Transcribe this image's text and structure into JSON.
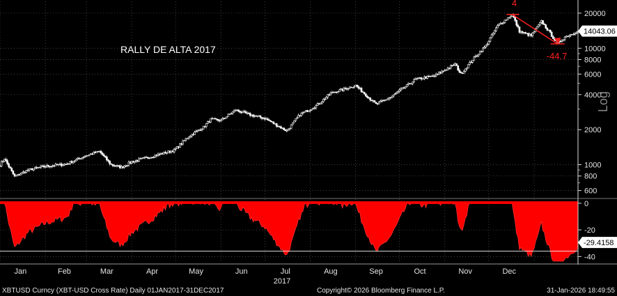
{
  "chart_data": [
    {
      "type": "candlestick",
      "title": "RALLY DE ALTA 2017",
      "scale": "log",
      "y_axis_label": "Log",
      "y_ticks": [
        600,
        800,
        1000,
        2000,
        4000,
        6000,
        8000,
        10000,
        20000
      ],
      "y_tick_labels": [
        "600",
        "800",
        "1000",
        "2000",
        "4000",
        "6000",
        "8000",
        "10000",
        "20000"
      ],
      "ylim": [
        520,
        22000
      ],
      "last_value": 14043.06,
      "last_value_label": "14043.06",
      "x_range": [
        "2017-01-01",
        "2018-01-31"
      ],
      "month_labels": [
        "Jan",
        "Feb",
        "Mar",
        "Apr",
        "May",
        "Jun",
        "Jul",
        "Aug",
        "Sep",
        "Oct",
        "Nov",
        "Dec"
      ],
      "month_label_dates": [
        "2017-01-15",
        "2017-02-14",
        "2017-03-15",
        "2017-04-15",
        "2017-05-15",
        "2017-06-15",
        "2017-07-15",
        "2017-08-15",
        "2017-09-15",
        "2017-10-15",
        "2017-11-15",
        "2017-12-15"
      ],
      "year_label": "2017",
      "anchors": [
        [
          "2017-01-01",
          1000
        ],
        [
          "2017-01-04",
          1130
        ],
        [
          "2017-01-11",
          790
        ],
        [
          "2017-01-20",
          900
        ],
        [
          "2017-02-01",
          970
        ],
        [
          "2017-02-15",
          1010
        ],
        [
          "2017-03-01",
          1200
        ],
        [
          "2017-03-10",
          1300
        ],
        [
          "2017-03-18",
          1000
        ],
        [
          "2017-03-25",
          950
        ],
        [
          "2017-04-01",
          1060
        ],
        [
          "2017-04-15",
          1180
        ],
        [
          "2017-04-30",
          1330
        ],
        [
          "2017-05-10",
          1750
        ],
        [
          "2017-05-20",
          2100
        ],
        [
          "2017-05-25",
          2450
        ],
        [
          "2017-06-01",
          2400
        ],
        [
          "2017-06-11",
          2950
        ],
        [
          "2017-06-20",
          2700
        ],
        [
          "2017-07-01",
          2500
        ],
        [
          "2017-07-16",
          1950
        ],
        [
          "2017-07-25",
          2700
        ],
        [
          "2017-08-05",
          3200
        ],
        [
          "2017-08-15",
          4100
        ],
        [
          "2017-09-01",
          4800
        ],
        [
          "2017-09-15",
          3300
        ],
        [
          "2017-09-25",
          3800
        ],
        [
          "2017-10-12",
          5400
        ],
        [
          "2017-10-25",
          5800
        ],
        [
          "2017-11-08",
          7300
        ],
        [
          "2017-11-12",
          6000
        ],
        [
          "2017-11-20",
          8000
        ],
        [
          "2017-11-29",
          10500
        ],
        [
          "2017-12-07",
          15500
        ],
        [
          "2017-12-17",
          19500
        ],
        [
          "2017-12-22",
          14000
        ],
        [
          "2017-12-25",
          13500
        ],
        [
          "2017-12-30",
          12800
        ],
        [
          "2018-01-06",
          17000
        ],
        [
          "2018-01-11",
          14000
        ],
        [
          "2018-01-17",
          10900
        ],
        [
          "2018-01-22",
          12500
        ],
        [
          "2018-01-31",
          14043
        ]
      ],
      "annotations": [
        {
          "label": "4",
          "date": "2017-12-17",
          "value": 19500
        },
        {
          "label": "-44.7",
          "date": "2018-01-17",
          "value": 10900
        }
      ]
    },
    {
      "type": "area",
      "y_ticks": [
        0,
        -20,
        -40
      ],
      "y_tick_labels": [
        "0",
        "-20",
        "-40"
      ],
      "ylim": [
        -44,
        2
      ],
      "last_value": -29.4158,
      "last_value_label": "-29.4158",
      "reference_line": -36
    }
  ],
  "footer": {
    "left": "XBTUSD Curncy (XBT-USD Cross Rate) Daily 01JAN2017-31DEC2017",
    "center": "Copyright© 2026 Bloomberg Finance L.P.",
    "right": "31-Jan-2026 18:49:55"
  },
  "colors": {
    "background": "#000000",
    "candles": "#ffffff",
    "drawdown_fill": "#ff0000",
    "grid": "#5a5a5a",
    "annotation": "#ff2020"
  }
}
